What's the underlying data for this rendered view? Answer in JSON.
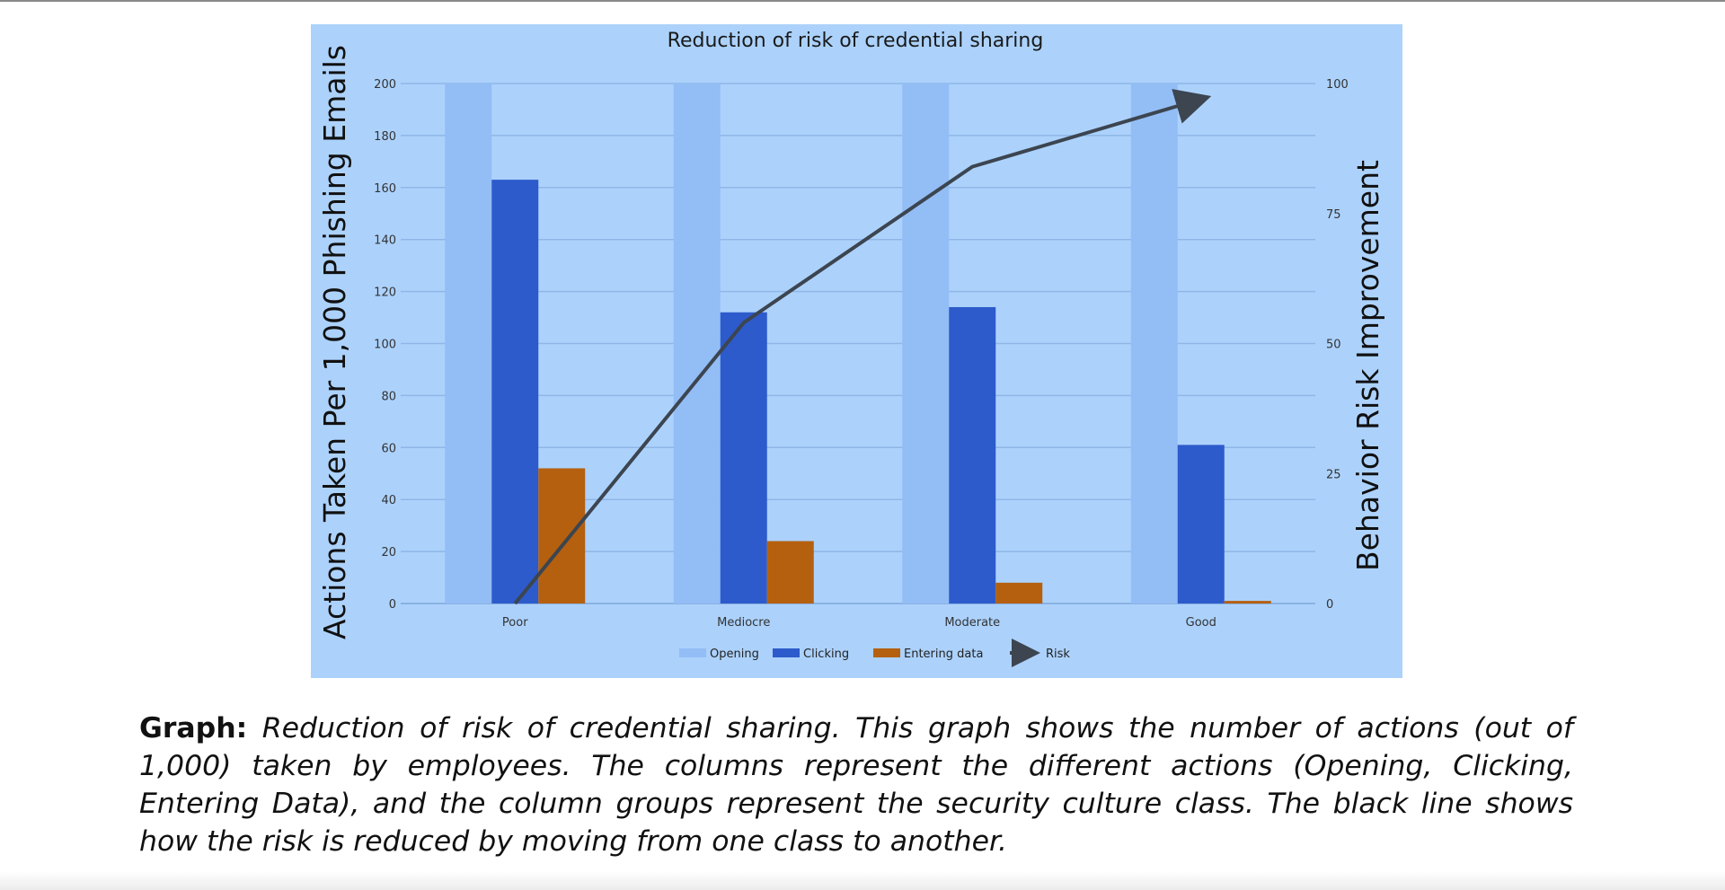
{
  "figure": {
    "caption_lead": "Graph:",
    "caption_text": "Reduction of risk of credential sharing. This graph shows the number of actions (out of 1,000) taken by employees. The columns represent the different actions (Opening, Clicking, Entering Data), and the column groups represent the security culture class. The black line shows how the risk is reduced by moving from one class to another."
  },
  "chart_data": {
    "type": "bar",
    "title": "Reduction of risk of credential sharing",
    "ylabel": "Actions Taken Per 1,000 Phishing Emails",
    "y2label": "Behavior Risk Improvement",
    "ylim": [
      0,
      200
    ],
    "y_ticks": [
      0,
      20,
      40,
      60,
      80,
      100,
      120,
      140,
      160,
      180,
      200
    ],
    "y2lim": [
      0,
      100
    ],
    "y2_ticks": [
      0,
      25,
      50,
      75,
      100
    ],
    "categories": [
      "Poor",
      "Mediocre",
      "Moderate",
      "Good"
    ],
    "series": [
      {
        "name": "Opening",
        "values": [
          200,
          200,
          200,
          200
        ],
        "color": "#93bdf5"
      },
      {
        "name": "Clicking",
        "values": [
          163,
          112,
          114,
          61
        ],
        "color": "#2d5bcb"
      },
      {
        "name": "Entering data",
        "values": [
          52,
          24,
          8,
          1
        ],
        "color": "#b5600f"
      }
    ],
    "line_series": {
      "name": "Risk",
      "axis": "secondary",
      "values": [
        0,
        54,
        84,
        97
      ],
      "color": "#3c4550",
      "arrow_end": true
    },
    "grid": true,
    "legend_position": "bottom"
  }
}
